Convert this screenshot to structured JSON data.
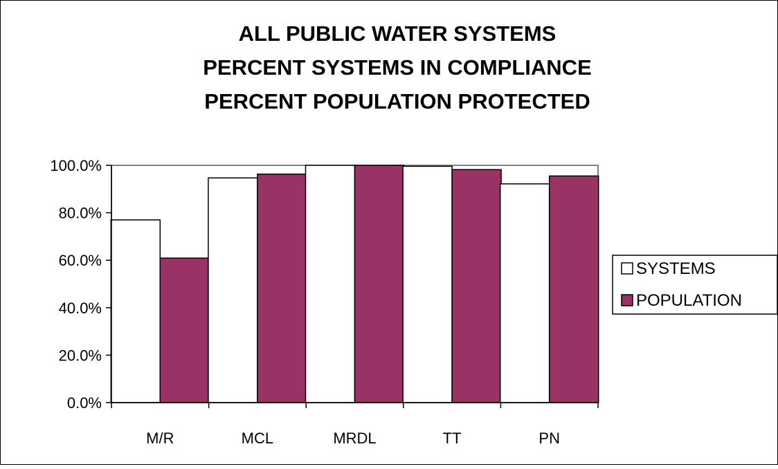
{
  "chart_data": {
    "type": "bar",
    "title": [
      "ALL PUBLIC WATER SYSTEMS",
      "PERCENT SYSTEMS IN COMPLIANCE",
      "PERCENT POPULATION PROTECTED"
    ],
    "categories": [
      "M/R",
      "MCL",
      "MRDL",
      "TT",
      "PN"
    ],
    "series": [
      {
        "name": "SYSTEMS",
        "values": [
          77.0,
          94.7,
          100.0,
          99.6,
          92.2
        ],
        "color": "#ffffff"
      },
      {
        "name": "POPULATION",
        "values": [
          60.9,
          96.3,
          100.0,
          98.2,
          95.5
        ],
        "color": "#993366"
      }
    ],
    "ylim": [
      0,
      100
    ],
    "yticks": [
      "0.0%",
      "20.0%",
      "40.0%",
      "60.0%",
      "80.0%",
      "100.0%"
    ],
    "xlabel": "",
    "ylabel": "",
    "grid": false,
    "legend_position": "right"
  }
}
